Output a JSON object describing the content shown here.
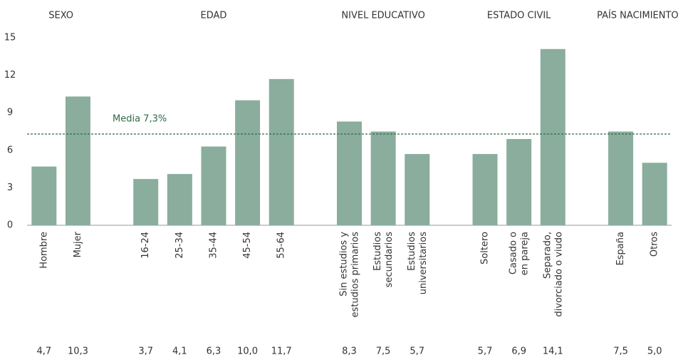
{
  "chart_data": {
    "type": "bar",
    "color": "#8aad9e",
    "ylim": [
      0,
      15
    ],
    "yticks": [
      0,
      3,
      6,
      9,
      12,
      15
    ],
    "mean_line": {
      "value": 7.3,
      "label": "Media 7,3%",
      "color": "#2e6b45"
    },
    "groups": [
      {
        "name": "SEXO",
        "categories": [
          "Hombre",
          "Mujer"
        ],
        "values": [
          4.7,
          10.3
        ],
        "value_labels": [
          "4,7",
          "10,3"
        ]
      },
      {
        "name": "EDAD",
        "categories": [
          "16-24",
          "25-34",
          "35-44",
          "45-54",
          "55-64"
        ],
        "values": [
          3.7,
          4.1,
          6.3,
          10.0,
          11.7
        ],
        "value_labels": [
          "3,7",
          "4,1",
          "6,3",
          "10,0",
          "11,7"
        ]
      },
      {
        "name": "NIVEL EDUCATIVO",
        "categories": [
          "Sin estudios y\nestudios primarios",
          "Estudios\nsecundarios",
          "Estudios\nuniversitarios"
        ],
        "values": [
          8.3,
          7.5,
          5.7
        ],
        "value_labels": [
          "8,3",
          "7,5",
          "5,7"
        ]
      },
      {
        "name": "ESTADO CIVIL",
        "categories": [
          "Soltero",
          "Casado o\nen pareja",
          "Separado,\ndivorciado o viudo"
        ],
        "values": [
          5.7,
          6.9,
          14.1
        ],
        "value_labels": [
          "5,7",
          "6,9",
          "14,1"
        ]
      },
      {
        "name": "PAÍS NACIMIENTO",
        "categories": [
          "España",
          "Otros"
        ],
        "values": [
          7.5,
          5.0
        ],
        "value_labels": [
          "7,5",
          "5,0"
        ]
      }
    ]
  }
}
